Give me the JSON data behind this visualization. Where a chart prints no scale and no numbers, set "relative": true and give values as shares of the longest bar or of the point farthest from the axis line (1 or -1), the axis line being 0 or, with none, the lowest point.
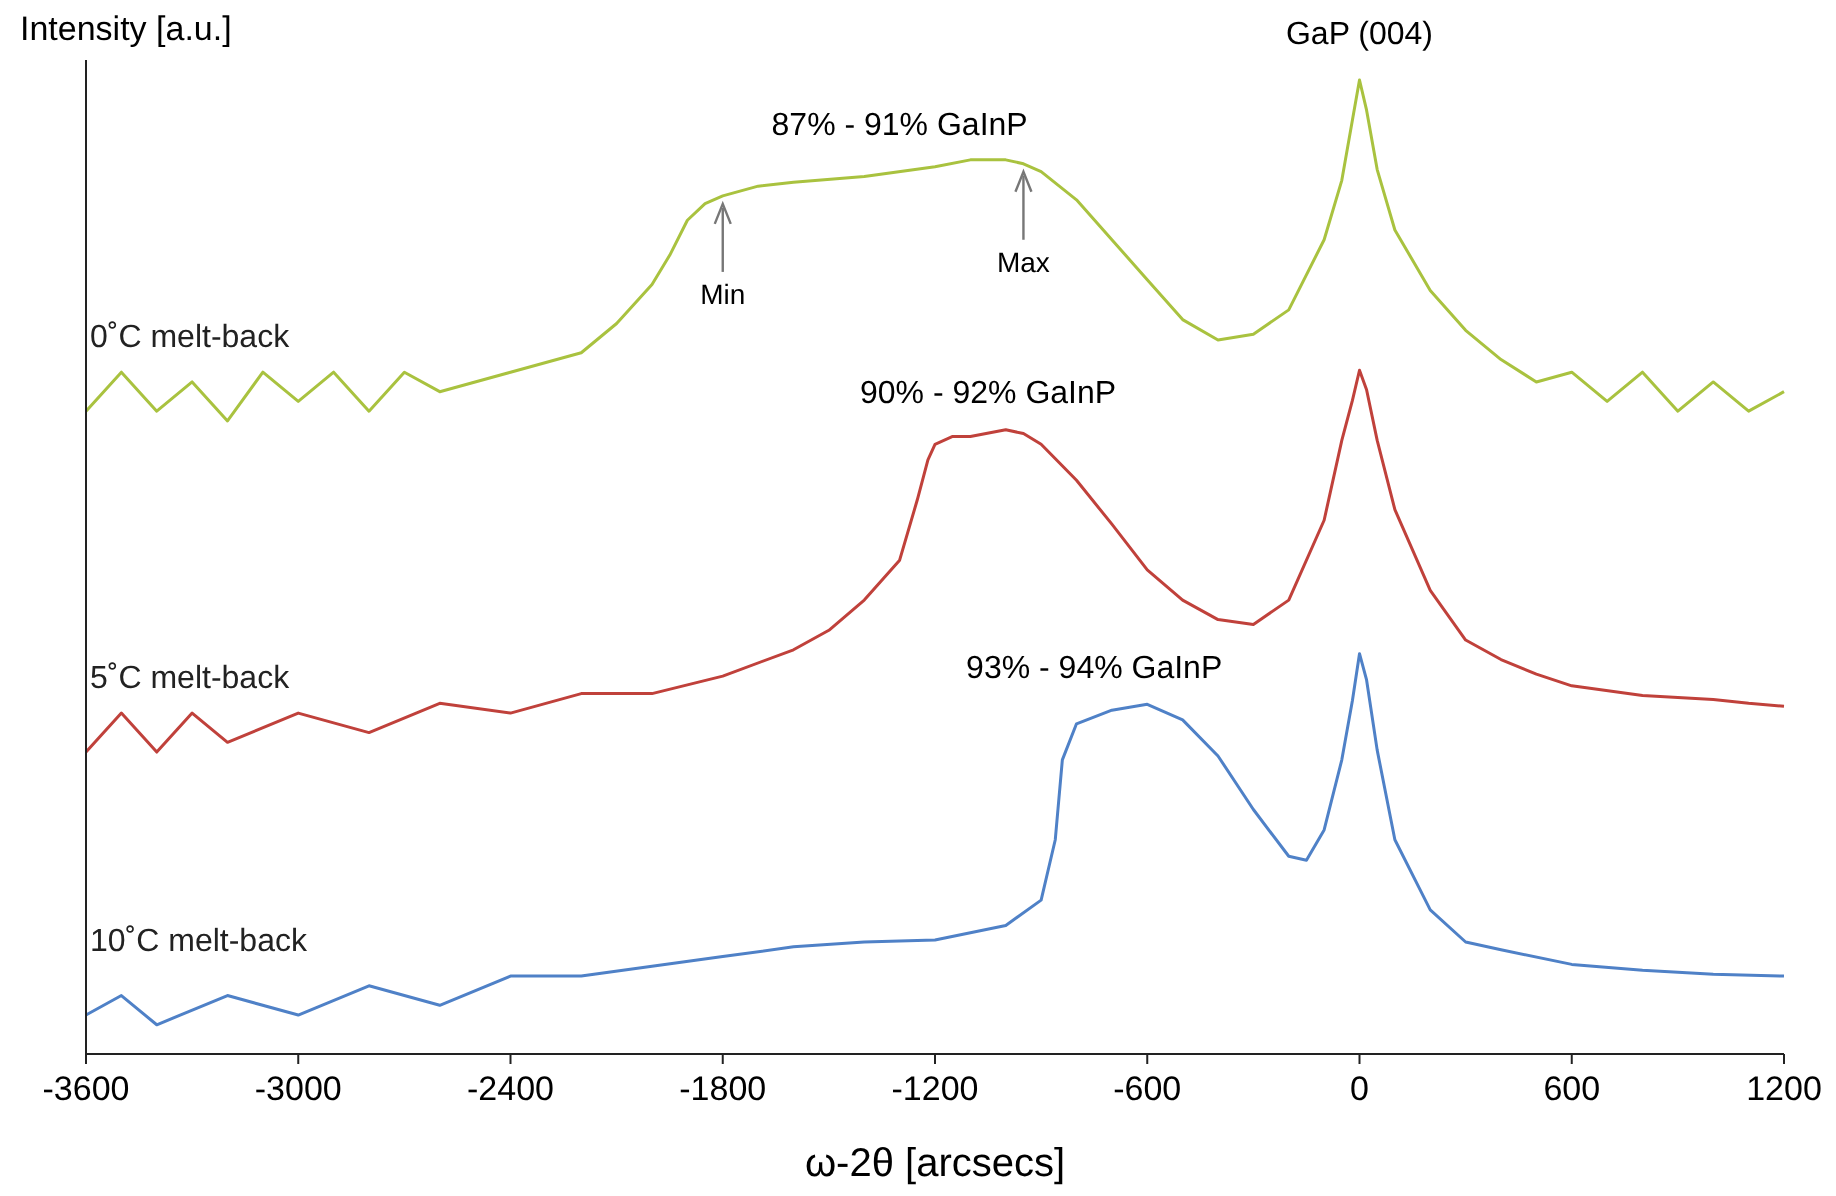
{
  "chart_data": {
    "type": "line",
    "relative": true,
    "ylabel": "Intensity [a.u.]",
    "xlabel": "ω-2θ [arcsecs]",
    "xlim": [
      -3600,
      1200
    ],
    "xticks": [
      -3600,
      -3000,
      -2400,
      -1800,
      -1200,
      -600,
      0,
      600,
      1200
    ],
    "grid": false,
    "marker": "none",
    "line_style": "solid",
    "series": [
      {
        "name": "0˚C melt-back",
        "color": "#a9c23f",
        "x": [
          -3600,
          -3500,
          -3400,
          -3300,
          -3200,
          -3100,
          -3000,
          -2900,
          -2800,
          -2700,
          -2600,
          -2400,
          -2200,
          -2100,
          -2000,
          -1950,
          -1900,
          -1850,
          -1800,
          -1700,
          -1600,
          -1400,
          -1200,
          -1100,
          -1000,
          -950,
          -900,
          -800,
          -700,
          -600,
          -500,
          -400,
          -300,
          -200,
          -100,
          -50,
          -20,
          0,
          20,
          50,
          100,
          200,
          300,
          400,
          500,
          600,
          700,
          800,
          900,
          1000,
          1100,
          1200
        ],
        "values": [
          0.66,
          0.7,
          0.66,
          0.69,
          0.65,
          0.7,
          0.67,
          0.7,
          0.66,
          0.7,
          0.68,
          0.7,
          0.72,
          0.75,
          0.79,
          0.82,
          0.856,
          0.873,
          0.881,
          0.891,
          0.895,
          0.901,
          0.911,
          0.918,
          0.918,
          0.914,
          0.906,
          0.877,
          0.836,
          0.795,
          0.754,
          0.733,
          0.739,
          0.764,
          0.836,
          0.897,
          0.959,
          1.0,
          0.969,
          0.908,
          0.846,
          0.784,
          0.743,
          0.713,
          0.69,
          0.7,
          0.67,
          0.7,
          0.66,
          0.69,
          0.66,
          0.68
        ]
      },
      {
        "name": "5˚C melt-back",
        "color": "#c0413b",
        "x": [
          -3600,
          -3500,
          -3400,
          -3300,
          -3200,
          -3000,
          -2800,
          -2600,
          -2400,
          -2200,
          -2000,
          -1800,
          -1600,
          -1500,
          -1400,
          -1300,
          -1250,
          -1220,
          -1200,
          -1150,
          -1100,
          -1000,
          -950,
          -900,
          -800,
          -700,
          -600,
          -500,
          -400,
          -300,
          -200,
          -100,
          -50,
          -20,
          0,
          20,
          50,
          100,
          200,
          300,
          400,
          500,
          600,
          800,
          1000,
          1100,
          1200
        ],
        "values": [
          0.31,
          0.35,
          0.31,
          0.35,
          0.32,
          0.35,
          0.33,
          0.36,
          0.35,
          0.37,
          0.37,
          0.388,
          0.415,
          0.435,
          0.466,
          0.507,
          0.569,
          0.61,
          0.626,
          0.634,
          0.634,
          0.641,
          0.637,
          0.626,
          0.589,
          0.544,
          0.497,
          0.466,
          0.446,
          0.441,
          0.466,
          0.548,
          0.63,
          0.671,
          0.702,
          0.682,
          0.63,
          0.559,
          0.476,
          0.425,
          0.405,
          0.39,
          0.378,
          0.368,
          0.364,
          0.36,
          0.357
        ]
      },
      {
        "name": "10˚C melt-back",
        "color": "#4f81c7",
        "x": [
          -3600,
          -3500,
          -3400,
          -3200,
          -3000,
          -2800,
          -2600,
          -2400,
          -2200,
          -2000,
          -1800,
          -1600,
          -1400,
          -1200,
          -1000,
          -900,
          -860,
          -840,
          -800,
          -700,
          -600,
          -500,
          -400,
          -300,
          -200,
          -150,
          -100,
          -50,
          -20,
          0,
          20,
          50,
          100,
          200,
          300,
          400,
          600,
          800,
          1000,
          1200
        ],
        "values": [
          0.04,
          0.06,
          0.03,
          0.06,
          0.04,
          0.07,
          0.05,
          0.08,
          0.08,
          0.09,
          0.1,
          0.11,
          0.115,
          0.117,
          0.132,
          0.158,
          0.22,
          0.302,
          0.339,
          0.353,
          0.359,
          0.343,
          0.306,
          0.251,
          0.203,
          0.199,
          0.23,
          0.302,
          0.363,
          0.411,
          0.384,
          0.312,
          0.22,
          0.148,
          0.115,
          0.107,
          0.092,
          0.086,
          0.082,
          0.08
        ]
      }
    ],
    "annotations": [
      {
        "text": "GaP (004)",
        "x": 0,
        "y": 1.0
      },
      {
        "text": "87% - 91% GaInP",
        "x": -1300,
        "y": 0.915
      },
      {
        "text": "90% - 92% GaInP",
        "x": -1050,
        "y": 0.64
      },
      {
        "text": "93% - 94% GaInP",
        "x": -750,
        "y": 0.357
      },
      {
        "text": "Min",
        "x": -1800,
        "y": 0.881
      },
      {
        "text": "Max",
        "x": -950,
        "y": 0.914
      }
    ]
  }
}
